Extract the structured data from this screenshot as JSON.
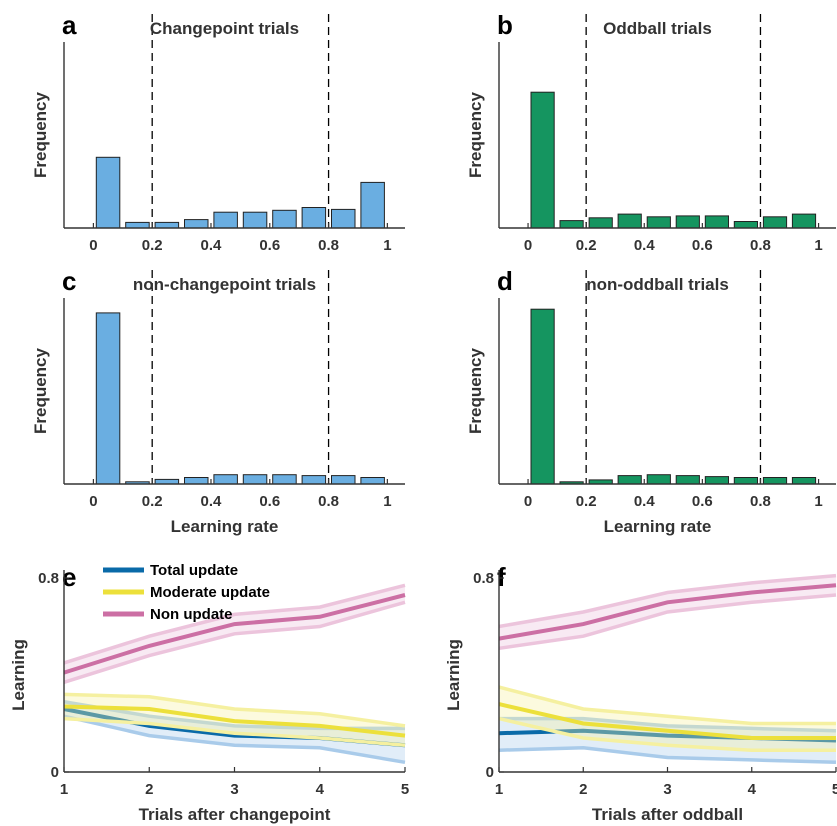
{
  "chart_data": [
    {
      "panel": "a",
      "type": "bar",
      "title": "Changepoint trials",
      "xlabel": "",
      "ylabel": "Frequency",
      "bin_centers": [
        0.05,
        0.15,
        0.25,
        0.35,
        0.45,
        0.55,
        0.65,
        0.75,
        0.85,
        0.95
      ],
      "values": [
        0.38,
        0.03,
        0.03,
        0.045,
        0.085,
        0.085,
        0.095,
        0.11,
        0.1,
        0.245
      ],
      "xlim": [
        -0.1,
        1.06
      ],
      "ylim": [
        0,
        1
      ],
      "xticks": [
        0,
        0.2,
        0.4,
        0.6,
        0.8,
        1
      ],
      "xtick_labels": [
        "0",
        "0.2",
        "0.4",
        "0.6",
        "0.8",
        "1"
      ],
      "vlines": [
        0.2,
        0.8
      ],
      "color": "#6aaee1"
    },
    {
      "panel": "b",
      "type": "bar",
      "title": "Oddball trials",
      "xlabel": "",
      "ylabel": "Frequency",
      "bin_centers": [
        0.05,
        0.15,
        0.25,
        0.35,
        0.45,
        0.55,
        0.65,
        0.75,
        0.85,
        0.95
      ],
      "values": [
        0.73,
        0.04,
        0.055,
        0.075,
        0.06,
        0.065,
        0.065,
        0.035,
        0.06,
        0.075
      ],
      "xlim": [
        -0.1,
        1.06
      ],
      "ylim": [
        0,
        1
      ],
      "xticks": [
        0,
        0.2,
        0.4,
        0.6,
        0.8,
        1
      ],
      "xtick_labels": [
        "0",
        "0.2",
        "0.4",
        "0.6",
        "0.8",
        "1"
      ],
      "vlines": [
        0.2,
        0.8
      ],
      "color": "#159560"
    },
    {
      "panel": "c",
      "type": "bar",
      "title": "non-changepoint trials",
      "xlabel": "Learning rate",
      "ylabel": "Frequency",
      "bin_centers": [
        0.05,
        0.15,
        0.25,
        0.35,
        0.45,
        0.55,
        0.65,
        0.75,
        0.85,
        0.95
      ],
      "values": [
        0.92,
        0.012,
        0.025,
        0.035,
        0.05,
        0.05,
        0.05,
        0.045,
        0.045,
        0.035
      ],
      "xlim": [
        -0.1,
        1.06
      ],
      "ylim": [
        0,
        1
      ],
      "xticks": [
        0,
        0.2,
        0.4,
        0.6,
        0.8,
        1
      ],
      "xtick_labels": [
        "0",
        "0.2",
        "0.4",
        "0.6",
        "0.8",
        "1"
      ],
      "vlines": [
        0.2,
        0.8
      ],
      "color": "#6aaee1"
    },
    {
      "panel": "d",
      "type": "bar",
      "title": "non-oddball trials",
      "xlabel": "Learning rate",
      "ylabel": "Frequency",
      "bin_centers": [
        0.05,
        0.15,
        0.25,
        0.35,
        0.45,
        0.55,
        0.65,
        0.75,
        0.85,
        0.95
      ],
      "values": [
        0.94,
        0.012,
        0.022,
        0.045,
        0.05,
        0.045,
        0.04,
        0.035,
        0.035,
        0.035
      ],
      "xlim": [
        -0.1,
        1.06
      ],
      "ylim": [
        0,
        1
      ],
      "xticks": [
        0,
        0.2,
        0.4,
        0.6,
        0.8,
        1
      ],
      "xtick_labels": [
        "0",
        "0.2",
        "0.4",
        "0.6",
        "0.8",
        "1"
      ],
      "vlines": [
        0.2,
        0.8
      ],
      "color": "#159560"
    },
    {
      "panel": "e",
      "type": "line",
      "title": "",
      "xlabel": "Trials after changepoint",
      "ylabel": "Learning",
      "x": [
        1,
        2,
        3,
        4,
        5
      ],
      "xlim": [
        1,
        5
      ],
      "ylim": [
        0,
        0.8
      ],
      "xticks": [
        1,
        2,
        3,
        4,
        5
      ],
      "yticks": [
        0,
        0.8
      ],
      "ytick_labels": [
        "0",
        "0.8"
      ],
      "legend": {
        "placement": "top-left"
      },
      "series": [
        {
          "name": "Total update",
          "color": "#0a6aa8",
          "band_color": "#a9cbea",
          "values": [
            0.26,
            0.19,
            0.15,
            0.14,
            0.11
          ],
          "lower": [
            0.23,
            0.15,
            0.11,
            0.1,
            0.04
          ],
          "upper": [
            0.29,
            0.23,
            0.19,
            0.18,
            0.18
          ]
        },
        {
          "name": "Moderate update",
          "color": "#ece03b",
          "band_color": "#f5f0a0",
          "values": [
            0.27,
            0.26,
            0.21,
            0.19,
            0.15
          ],
          "lower": [
            0.22,
            0.2,
            0.16,
            0.14,
            0.11
          ],
          "upper": [
            0.32,
            0.31,
            0.26,
            0.24,
            0.19
          ]
        },
        {
          "name": "Non update",
          "color": "#cc6fa4",
          "band_color": "#ecc4dc",
          "values": [
            0.41,
            0.52,
            0.61,
            0.64,
            0.73
          ],
          "lower": [
            0.37,
            0.48,
            0.57,
            0.6,
            0.7
          ],
          "upper": [
            0.45,
            0.56,
            0.65,
            0.68,
            0.77
          ]
        }
      ]
    },
    {
      "panel": "f",
      "type": "line",
      "title": "",
      "xlabel": "Trials after oddball",
      "ylabel": "Learning",
      "x": [
        1,
        2,
        3,
        4,
        5
      ],
      "xlim": [
        1,
        5
      ],
      "ylim": [
        0,
        0.8
      ],
      "xticks": [
        1,
        2,
        3,
        4,
        5
      ],
      "yticks": [
        0,
        0.8
      ],
      "ytick_labels": [
        "0",
        "0.8"
      ],
      "series": [
        {
          "name": "Total update",
          "color": "#0a6aa8",
          "band_color": "#a9cbea",
          "values": [
            0.16,
            0.17,
            0.15,
            0.14,
            0.13
          ],
          "lower": [
            0.09,
            0.1,
            0.06,
            0.05,
            0.04
          ],
          "upper": [
            0.22,
            0.22,
            0.19,
            0.18,
            0.17
          ]
        },
        {
          "name": "Moderate update",
          "color": "#ece03b",
          "band_color": "#f5f0a0",
          "values": [
            0.28,
            0.2,
            0.17,
            0.14,
            0.14
          ],
          "lower": [
            0.22,
            0.14,
            0.11,
            0.09,
            0.09
          ],
          "upper": [
            0.35,
            0.26,
            0.23,
            0.2,
            0.2
          ]
        },
        {
          "name": "Non update",
          "color": "#cc6fa4",
          "band_color": "#ecc4dc",
          "values": [
            0.55,
            0.61,
            0.7,
            0.74,
            0.77
          ],
          "lower": [
            0.51,
            0.56,
            0.66,
            0.7,
            0.73
          ],
          "upper": [
            0.6,
            0.66,
            0.74,
            0.78,
            0.81
          ]
        }
      ]
    }
  ]
}
